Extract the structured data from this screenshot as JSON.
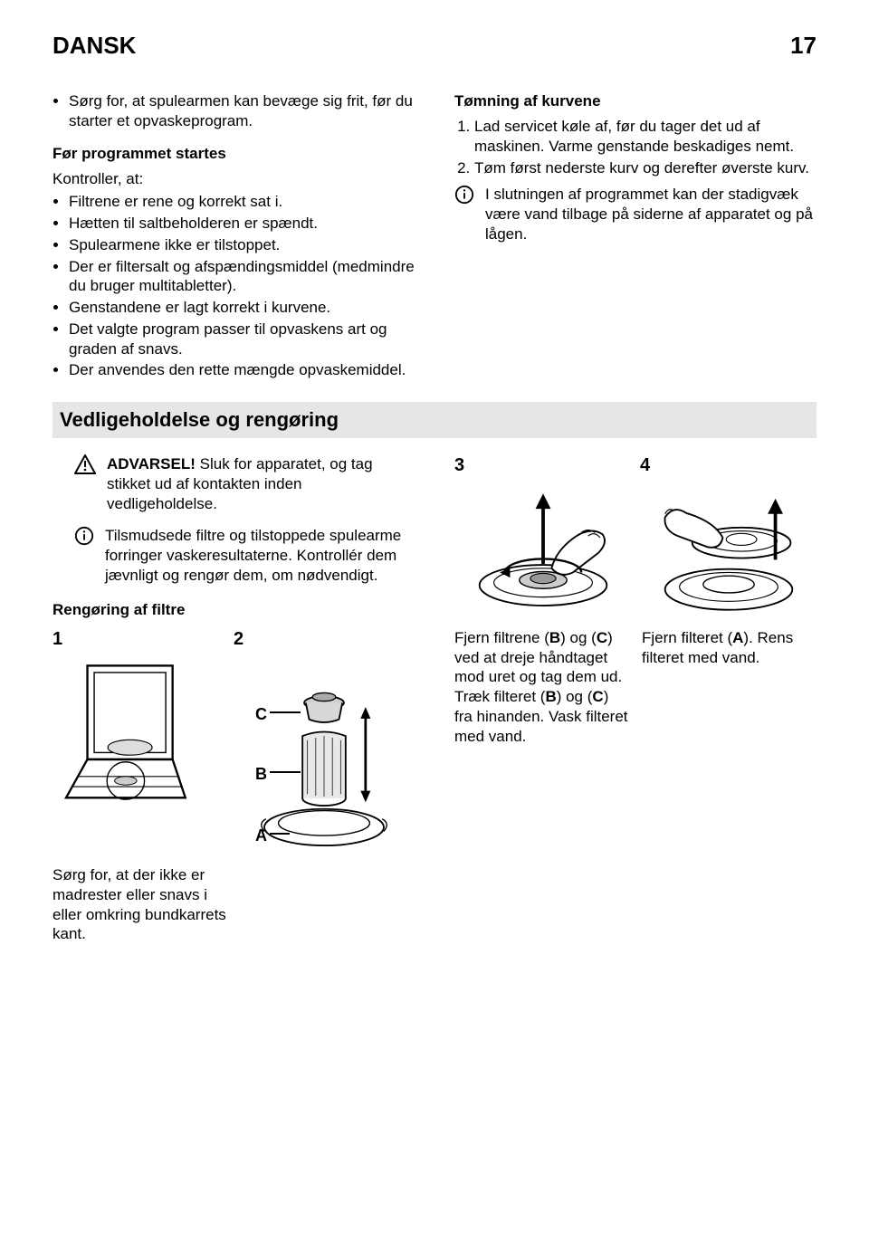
{
  "header": {
    "lang": "DANSK",
    "page": "17"
  },
  "left_col": {
    "intro_bullet": "Sørg for, at spulearmen kan bevæge sig frit, før du starter et opvaskeprogram.",
    "before_heading": "Før programmet startes",
    "kontroller": "Kontroller, at:",
    "bullets": [
      "Filtrene er rene og korrekt sat i.",
      "Hætten til saltbeholderen er spændt.",
      "Spulearmene ikke er tilstoppet.",
      "Der er filtersalt og afspændingsmiddel (medmindre du bruger multitabletter).",
      "Genstandene er lagt korrekt i kurvene.",
      "Det valgte program passer til opvaskens art og graden af snavs.",
      "Der anvendes den rette mængde opvaskemiddel."
    ]
  },
  "right_col": {
    "heading": "Tømning af kurvene",
    "items": [
      "Lad servicet køle af, før du tager det ud af maskinen. Varme genstande beskadiges nemt.",
      "Tøm først nederste kurv og derefter øverste kurv."
    ],
    "info": "I slutningen af programmet kan der stadigvæk være vand tilbage på siderne af apparatet og på lågen."
  },
  "section_title": "Vedligeholdelse og rengøring",
  "lower_left": {
    "warn_label": "ADVARSEL!",
    "warn_text": " Sluk for apparatet, og tag stikket ud af kontakten inden vedligeholdelse.",
    "info_text": "Tilsmudsede filtre og tilstoppede spulearme forringer vaskeresultaterne. Kontrollér dem jævnligt og rengør dem, om nødvendigt.",
    "filter_head": "Rengøring af filtre",
    "fig1_num": "1",
    "fig2_num": "2",
    "labels": {
      "a": "A",
      "b": "B",
      "c": "C"
    },
    "bottom_caption": "Sørg for, at der ikke er madrester eller snavs i eller omkring bundkarrets kant."
  },
  "lower_right": {
    "fig3_num": "3",
    "fig4_num": "4",
    "cap3": "Fjern filtrene (B) og (C) ved at dreje håndtaget mod uret og tag dem ud. Træk filteret (B) og (C) fra hinanden. Vask filteret med vand.",
    "cap4": "Fjern filteret (A). Rens filteret med vand."
  }
}
